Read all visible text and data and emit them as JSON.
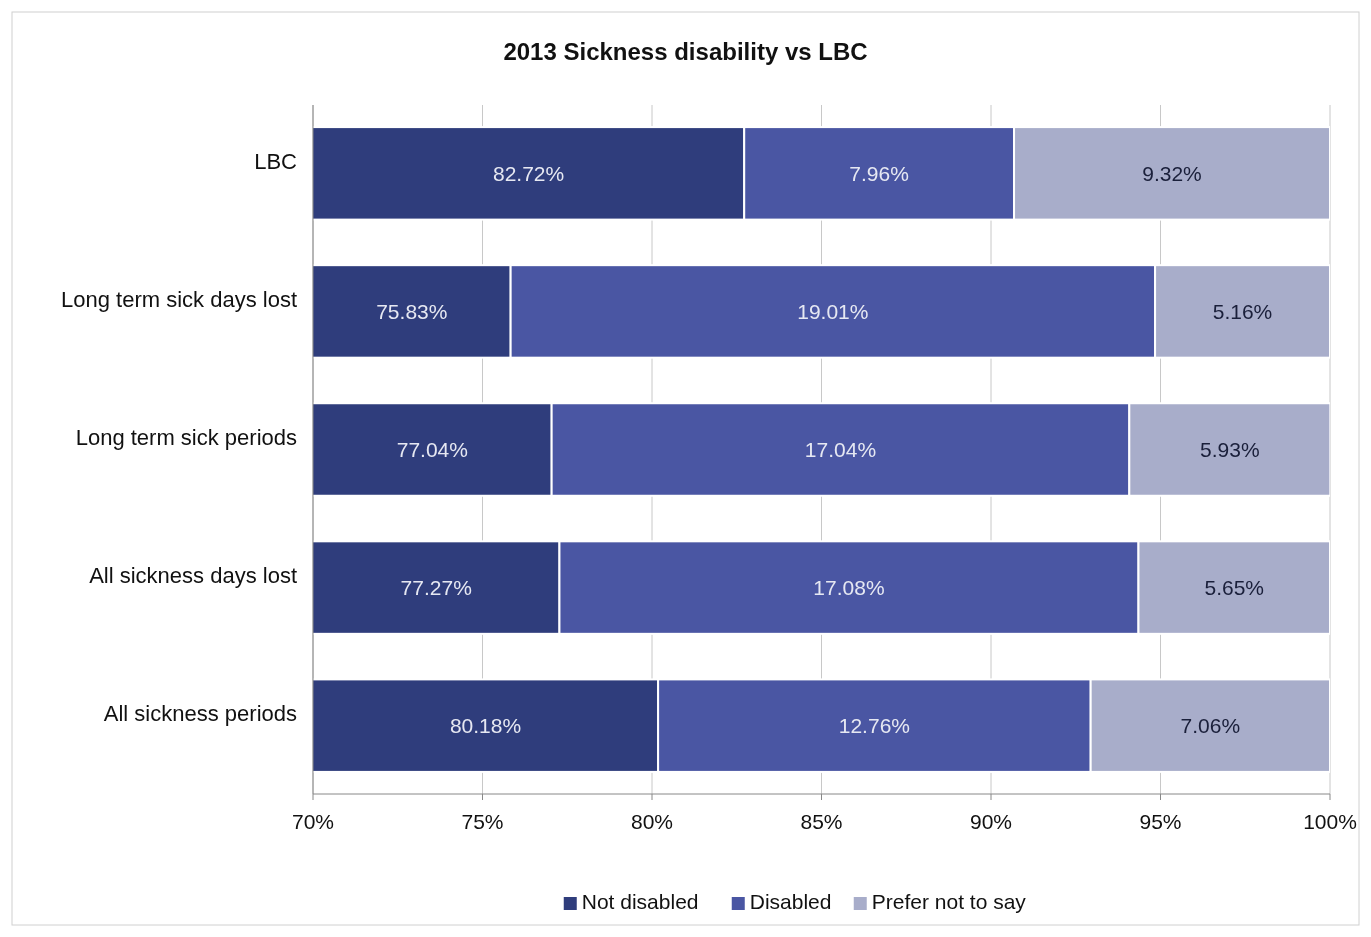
{
  "chart_data": {
    "type": "bar",
    "orientation": "horizontal",
    "stacked": true,
    "title": "2013 Sickness disability vs LBC",
    "categories": [
      "LBC",
      "Long term sick days lost",
      "Long term sick periods",
      "All sickness days lost",
      "All sickness periods"
    ],
    "series": [
      {
        "name": "Not disabled",
        "color": "#2f3d7c",
        "values": [
          82.72,
          75.83,
          77.04,
          77.27,
          80.18
        ],
        "value_labels": [
          "82.72%",
          "75.83%",
          "77.04%",
          "77.27%",
          "80.18%"
        ]
      },
      {
        "name": "Disabled",
        "color": "#4a56a3",
        "base": [
          82.72,
          75.83,
          77.04,
          77.27,
          80.18
        ],
        "values": [
          7.96,
          19.01,
          17.04,
          17.08,
          12.76
        ],
        "value_labels": [
          "7.96%",
          "19.01%",
          "17.04%",
          "17.08%",
          "12.76%"
        ]
      },
      {
        "name": "Prefer not to say",
        "color": "#a8adca",
        "base": [
          90.68,
          94.84,
          94.08,
          94.35,
          92.94
        ],
        "values": [
          9.32,
          5.16,
          5.93,
          5.65,
          7.06
        ],
        "value_labels": [
          "9.32%",
          "5.16%",
          "5.93%",
          "5.65%",
          "7.06%"
        ]
      }
    ],
    "xlim": [
      70,
      100
    ],
    "xticks": [
      {
        "value": 70,
        "label": "70%"
      },
      {
        "value": 75,
        "label": "75%"
      },
      {
        "value": 80,
        "label": "80%"
      },
      {
        "value": 85,
        "label": "85%"
      },
      {
        "value": 90,
        "label": "90%"
      },
      {
        "value": 95,
        "label": "95%"
      },
      {
        "value": 100,
        "label": "100%"
      }
    ],
    "grid": "x",
    "legend": "bottom"
  }
}
